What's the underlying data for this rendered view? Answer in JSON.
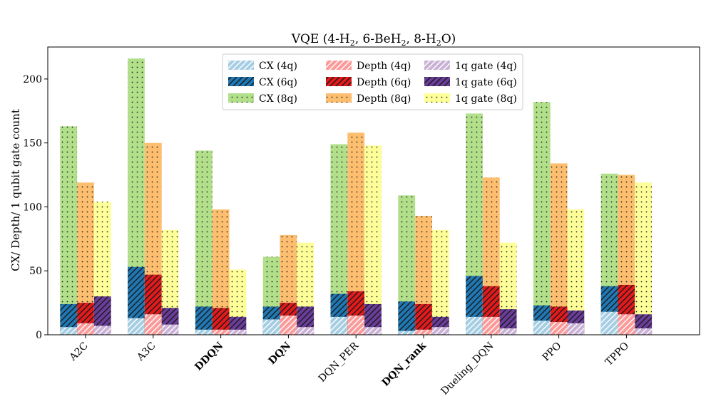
{
  "chart_data": {
    "type": "bar",
    "title_parts": {
      "prefix": "VQE (4-H",
      "sub1": "2",
      "mid1": ", 6-BeH",
      "sub2": "2",
      "mid2": ", 8-H",
      "sub3": "2",
      "suffix": "O)"
    },
    "ylabel": "CX/ Depth/ 1 qubit gate count",
    "xlabel": "",
    "ylim": [
      0,
      225
    ],
    "yticks": [
      0,
      50,
      100,
      150,
      200
    ],
    "categories": [
      "A2C",
      "A3C",
      "DDQN",
      "DQN",
      "DQN_PER",
      "DQN_rank",
      "Dueling_DQN",
      "PPO",
      "TPPO"
    ],
    "bold_categories": [
      "DDQN",
      "DQN",
      "DQN_rank"
    ],
    "metrics": [
      "CX",
      "Depth",
      "1q gate"
    ],
    "series": [
      {
        "name": "CX (4q)",
        "metric": "CX",
        "qubits": "4q",
        "color": "#a6cee3",
        "pattern": "hatch-light",
        "values": [
          6,
          13,
          4,
          12,
          14,
          3,
          14,
          11,
          18
        ]
      },
      {
        "name": "CX (6q)",
        "metric": "CX",
        "qubits": "6q",
        "color": "#1f78b4",
        "pattern": "hatch-dark",
        "values": [
          24,
          53,
          22,
          22,
          32,
          26,
          46,
          23,
          38
        ]
      },
      {
        "name": "CX (8q)",
        "metric": "CX",
        "qubits": "8q",
        "color": "#b2df8a",
        "pattern": "dots",
        "values": [
          163,
          216,
          144,
          61,
          149,
          109,
          173,
          182,
          126
        ]
      },
      {
        "name": "Depth (4q)",
        "metric": "Depth",
        "qubits": "4q",
        "color": "#fb9a99",
        "pattern": "hatch-light",
        "values": [
          9,
          16,
          4,
          15,
          15,
          4,
          14,
          10,
          16
        ]
      },
      {
        "name": "Depth (6q)",
        "metric": "Depth",
        "qubits": "6q",
        "color": "#e31a1c",
        "pattern": "hatch-dark",
        "values": [
          25,
          47,
          21,
          25,
          34,
          24,
          38,
          22,
          39
        ]
      },
      {
        "name": "Depth (8q)",
        "metric": "Depth",
        "qubits": "8q",
        "color": "#fdbf6f",
        "pattern": "dots",
        "values": [
          119,
          150,
          98,
          78,
          158,
          93,
          123,
          134,
          125
        ]
      },
      {
        "name": "1q gate (4q)",
        "metric": "1q gate",
        "qubits": "4q",
        "color": "#cab2d6",
        "pattern": "hatch-light",
        "values": [
          7,
          8,
          4,
          6,
          6,
          6,
          5,
          9,
          5
        ]
      },
      {
        "name": "1q gate (6q)",
        "metric": "1q gate",
        "qubits": "6q",
        "color": "#6a3d9a",
        "pattern": "hatch-dark",
        "values": [
          30,
          21,
          14,
          22,
          24,
          14,
          20,
          19,
          16
        ]
      },
      {
        "name": "1q gate (8q)",
        "metric": "1q gate",
        "qubits": "8q",
        "color": "#ffff99",
        "pattern": "dots",
        "values": [
          104,
          82,
          51,
          72,
          148,
          82,
          72,
          98,
          119
        ]
      }
    ],
    "legend_order": [
      "CX (4q)",
      "CX (6q)",
      "CX (8q)",
      "Depth (4q)",
      "Depth (6q)",
      "Depth (8q)",
      "1q gate (4q)",
      "1q gate (6q)",
      "1q gate (8q)"
    ],
    "legend_position": "top-center",
    "grid": false
  }
}
